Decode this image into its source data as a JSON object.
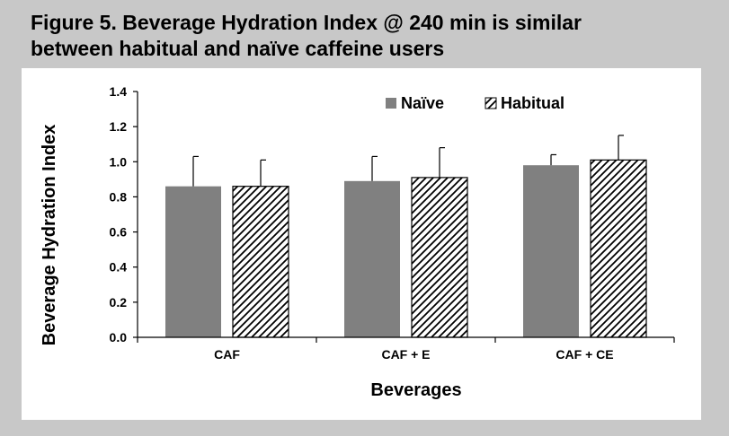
{
  "title_line1": "Figure 5. Beverage Hydration Index @ 240 min is similar",
  "title_line2": "between habitual and naïve caffeine users",
  "chart_data": {
    "type": "bar",
    "title": "Figure 5. Beverage Hydration Index @ 240 min is similar between habitual and naïve caffeine users",
    "xlabel": "Beverages",
    "ylabel": "Beverage Hydration Index",
    "categories": [
      "CAF",
      "CAF + E",
      "CAF + CE"
    ],
    "series": [
      {
        "name": "Naïve",
        "pattern": "solid",
        "color": "#808080",
        "values": [
          0.86,
          0.89,
          0.98
        ],
        "errors": [
          0.17,
          0.14,
          0.06
        ]
      },
      {
        "name": "Habitual",
        "pattern": "hatched",
        "color": "#000000",
        "values": [
          0.86,
          0.91,
          1.01
        ],
        "errors": [
          0.15,
          0.17,
          0.14
        ]
      }
    ],
    "ylim": [
      0,
      1.4
    ],
    "yticks": [
      "0.0",
      "0.2",
      "0.4",
      "0.6",
      "0.8",
      "1.0",
      "1.2",
      "1.4"
    ],
    "grid": false,
    "legend_position": "top"
  }
}
